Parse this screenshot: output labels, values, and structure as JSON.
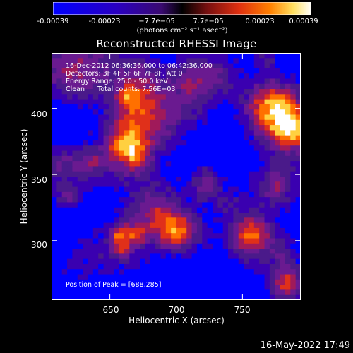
{
  "colorbar": {
    "ticks": [
      "-0.00039",
      "-0.00023",
      "−7.7e−05",
      "7.7e−05",
      "0.00023",
      "0.00039"
    ],
    "units": "(photons cm⁻² s⁻¹ asec⁻²)",
    "range": [
      -0.00039,
      0.00039
    ]
  },
  "title": "Reconstructed RHESSI Image",
  "annotations": {
    "time_range": "16-Dec-2012 06:36:36.000 to 06:42:36.000",
    "detectors": "Detectors: 3F 4F 5F 6F 7F 8F, Att 0",
    "energy": "Energy Range: 25.0 - 50.0 keV",
    "method": "Clean      Total counts: 7.56E+03",
    "peak": "Position of Peak = [688,285]"
  },
  "axes": {
    "xlabel": "Heliocentric X (arcsec)",
    "ylabel": "Heliocentric Y (arcsec)",
    "xticks": [
      "650",
      "700",
      "750"
    ],
    "yticks": [
      "400",
      "350",
      "300"
    ]
  },
  "timestamp": "16-May-2022 17:49",
  "chart_data": {
    "type": "heatmap",
    "title": "Reconstructed RHESSI Image",
    "xlabel": "Heliocentric X (arcsec)",
    "ylabel": "Heliocentric Y (arcsec)",
    "xlim": [
      606,
      794
    ],
    "ylim": [
      255,
      442
    ],
    "xticks": [
      650,
      700,
      750
    ],
    "yticks": [
      300,
      350,
      400
    ],
    "colorbar_range": [
      -0.00039,
      0.00039
    ],
    "peak_position": [
      688,
      285
    ],
    "colormap": [
      "#0000ff",
      "#3a00b0",
      "#4a1a8a",
      "#6a1a90",
      "#a01a5a",
      "#e0301a",
      "#ff7000",
      "#ffd040",
      "#ffffff"
    ]
  }
}
